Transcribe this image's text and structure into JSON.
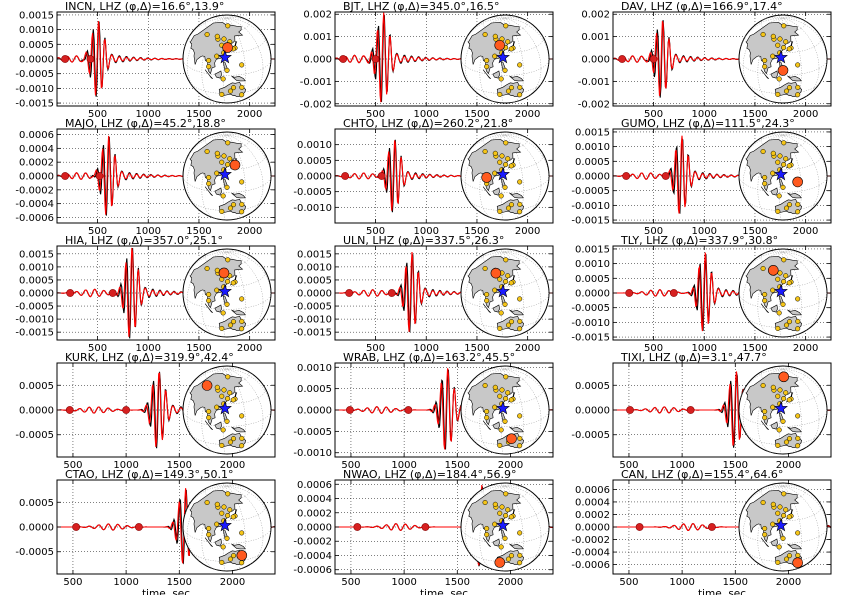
{
  "chart_data": {
    "type": "line",
    "xlabel": "time, sec",
    "series_colors": {
      "observed": "#000000",
      "synthetic": "#ff0000"
    },
    "globe_colors": {
      "land": "#c8c8c8",
      "ocean": "#ffffff",
      "station": "#f5c518",
      "active_station": "#ff5a1f",
      "event": "#1a1aff"
    },
    "panels": [
      {
        "station": "INCN",
        "channel": "LHZ",
        "phi": "16.6°",
        "delta": "13.9°",
        "xlim": [
          100,
          2250
        ],
        "xticks": [
          "500",
          "1000",
          "1500",
          "2000"
        ],
        "xtick_values": [
          500,
          1000,
          1500,
          2000
        ],
        "ylim": [
          -0.0016,
          0.0016
        ],
        "yticks": [
          "-0.0015",
          "-0.0010",
          "-0.0005",
          "0.0000",
          "0.0005",
          "0.0010",
          "0.0015"
        ],
        "ytick_values": [
          -0.0015,
          -0.001,
          -0.0005,
          0,
          0.0005,
          0.001,
          0.0015
        ],
        "arrival": 500,
        "peak": 0.00135,
        "markers": [
          180,
          430
        ],
        "active": {
          "lat": 37,
          "lon": 126
        }
      },
      {
        "station": "BJT",
        "channel": "LHZ",
        "phi": "345.0°",
        "delta": "16.5°",
        "xlim": [
          100,
          2250
        ],
        "xticks": [
          "500",
          "1000",
          "1500",
          "2000"
        ],
        "xtick_values": [
          500,
          1000,
          1500,
          2000
        ],
        "ylim": [
          -0.0021,
          0.0021
        ],
        "yticks": [
          "-0.002",
          "-0.001",
          "0.000",
          "0.001",
          "0.002"
        ],
        "ytick_values": [
          -0.002,
          -0.001,
          0,
          0.001,
          0.002
        ],
        "arrival": 570,
        "peak": 0.0021,
        "markers": [
          180,
          500
        ],
        "active": {
          "lat": 40,
          "lon": 116
        }
      },
      {
        "station": "DAV",
        "channel": "LHZ",
        "phi": "166.9°",
        "delta": "17.4°",
        "xlim": [
          100,
          2250
        ],
        "xticks": [
          "500",
          "1000",
          "1500",
          "2000"
        ],
        "xtick_values": [
          500,
          1000,
          1500,
          2000
        ],
        "ylim": [
          -0.0021,
          0.0021
        ],
        "yticks": [
          "-0.002",
          "-0.001",
          "0.000",
          "0.001",
          "0.002"
        ],
        "ytick_values": [
          -0.002,
          -0.001,
          0,
          0.001,
          0.002
        ],
        "arrival": 580,
        "peak": 0.0018,
        "markers": [
          190,
          500
        ],
        "active": {
          "lat": 7,
          "lon": 125
        }
      },
      {
        "station": "MAJO",
        "channel": "LHZ",
        "phi": "45.2°",
        "delta": "18.8°",
        "xlim": [
          100,
          2250
        ],
        "xticks": [
          "500",
          "1000",
          "1500",
          "2000"
        ],
        "xtick_values": [
          500,
          1000,
          1500,
          2000
        ],
        "ylim": [
          -0.00068,
          0.00068
        ],
        "yticks": [
          "-0.0006",
          "-0.0004",
          "-0.0002",
          "0.0000",
          "0.0002",
          "0.0004",
          "0.0006"
        ],
        "ytick_values": [
          -0.0006,
          -0.0004,
          -0.0002,
          0,
          0.0002,
          0.0004,
          0.0006
        ],
        "arrival": 600,
        "peak": 0.0006,
        "markers": [
          180,
          520
        ],
        "active": {
          "lat": 36,
          "lon": 138
        }
      },
      {
        "station": "CHTO",
        "channel": "LHZ",
        "phi": "260.2°",
        "delta": "21.8°",
        "xlim": [
          100,
          2250
        ],
        "xticks": [
          "500",
          "1000",
          "1500",
          "2000"
        ],
        "xtick_values": [
          500,
          1000,
          1500,
          2000
        ],
        "ylim": [
          -0.0015,
          0.0015
        ],
        "yticks": [
          "-0.0010",
          "-0.0005",
          "0.0000",
          "0.0005",
          "0.0010"
        ],
        "ytick_values": [
          -0.001,
          -0.0005,
          0,
          0.0005,
          0.001
        ],
        "arrival": 680,
        "peak": 0.0012,
        "markers": [
          200,
          560
        ],
        "active": {
          "lat": 18,
          "lon": 99
        }
      },
      {
        "station": "GUMO",
        "channel": "LHZ",
        "phi": "111.5°",
        "delta": "24.3°",
        "xlim": [
          100,
          2250
        ],
        "xticks": [
          "500",
          "1000",
          "1500",
          "2000"
        ],
        "xtick_values": [
          500,
          1000,
          1500,
          2000
        ],
        "ylim": [
          -0.0016,
          0.0016
        ],
        "yticks": [
          "-0.0015",
          "-0.0010",
          "-0.0005",
          "0.0000",
          "0.0005",
          "0.0010",
          "0.0015"
        ],
        "ytick_values": [
          -0.0015,
          -0.001,
          -0.0005,
          0,
          0.0005,
          0.001,
          0.0015
        ],
        "arrival": 770,
        "peak": 0.0014,
        "markers": [
          230,
          620
        ],
        "active": {
          "lat": 13,
          "lon": 145
        }
      },
      {
        "station": "HIA",
        "channel": "LHZ",
        "phi": "357.0°",
        "delta": "25.1°",
        "xlim": [
          100,
          2250
        ],
        "xticks": [
          "500",
          "1000",
          "1500",
          "2000"
        ],
        "xtick_values": [
          500,
          1000,
          1500,
          2000
        ],
        "ylim": [
          -0.0018,
          0.0018
        ],
        "yticks": [
          "-0.0015",
          "-0.0010",
          "-0.0005",
          "0.0000",
          "0.0005",
          "0.0010",
          "0.0015"
        ],
        "ytick_values": [
          -0.0015,
          -0.001,
          -0.0005,
          0,
          0.0005,
          0.001,
          0.0015
        ],
        "arrival": 830,
        "peak": 0.0018,
        "markers": [
          230,
          650
        ],
        "active": {
          "lat": 49,
          "lon": 119
        }
      },
      {
        "station": "ULN",
        "channel": "LHZ",
        "phi": "337.5°",
        "delta": "26.3°",
        "xlim": [
          100,
          2250
        ],
        "xticks": [
          "500",
          "1000",
          "1500",
          "2000"
        ],
        "xtick_values": [
          500,
          1000,
          1500,
          2000
        ],
        "ylim": [
          -0.0018,
          0.0018
        ],
        "yticks": [
          "-0.0015",
          "-0.0010",
          "-0.0005",
          "0.0000",
          "0.0005",
          "0.0010",
          "0.0015"
        ],
        "ytick_values": [
          -0.0015,
          -0.001,
          -0.0005,
          0,
          0.0005,
          0.001,
          0.0015
        ],
        "arrival": 850,
        "peak": 0.0016,
        "markers": [
          240,
          660
        ],
        "active": {
          "lat": 48,
          "lon": 107
        }
      },
      {
        "station": "TLY",
        "channel": "LHZ",
        "phi": "337.9°",
        "delta": "30.8°",
        "xlim": [
          100,
          2250
        ],
        "xticks": [
          "500",
          "1000",
          "1500",
          "2000"
        ],
        "xtick_values": [
          500,
          1000,
          1500,
          2000
        ],
        "ylim": [
          -0.0016,
          0.0016
        ],
        "yticks": [
          "-0.0015",
          "-0.0010",
          "-0.0005",
          "0.0000",
          "0.0005",
          "0.0010",
          "0.0015"
        ],
        "ytick_values": [
          -0.0015,
          -0.001,
          -0.0005,
          0,
          0.0005,
          0.001,
          0.0015
        ],
        "arrival": 1000,
        "peak": 0.0014,
        "markers": [
          260,
          700
        ],
        "active": {
          "lat": 52,
          "lon": 104
        }
      },
      {
        "station": "KURK",
        "channel": "LHZ",
        "phi": "319.9°",
        "delta": "42.4°",
        "xlim": [
          350,
          2400
        ],
        "xticks": [
          "500",
          "1000",
          "1500",
          "2000"
        ],
        "xtick_values": [
          500,
          1000,
          1500,
          2000
        ],
        "ylim": [
          -0.00095,
          0.00095
        ],
        "yticks": [
          "-0.0005",
          "0.0000",
          "0.0005"
        ],
        "ytick_values": [
          -0.0005,
          0,
          0.0005
        ],
        "arrival": 1300,
        "peak": 0.0008,
        "markers": [
          470,
          1000
        ],
        "active": {
          "lat": 51,
          "lon": 79
        }
      },
      {
        "station": "WRAB",
        "channel": "LHZ",
        "phi": "163.2°",
        "delta": "45.5°",
        "xlim": [
          350,
          2400
        ],
        "xticks": [
          "500",
          "1000",
          "1500",
          "2000"
        ],
        "xtick_values": [
          500,
          1000,
          1500,
          2000
        ],
        "ylim": [
          -0.0011,
          0.0011
        ],
        "yticks": [
          "-0.0010",
          "-0.0005",
          "0.0000",
          "0.0005",
          "0.0010"
        ],
        "ytick_values": [
          -0.001,
          -0.0005,
          0,
          0.0005,
          0.001
        ],
        "arrival": 1400,
        "peak": 0.001,
        "markers": [
          490,
          1040
        ],
        "active": {
          "lat": -19,
          "lon": 134
        }
      },
      {
        "station": "TIXI",
        "channel": "LHZ",
        "phi": "3.1°",
        "delta": "47.7°",
        "xlim": [
          350,
          2400
        ],
        "xticks": [
          "500",
          "1000",
          "1500",
          "2000"
        ],
        "xtick_values": [
          500,
          1000,
          1500,
          2000
        ],
        "ylim": [
          -0.00095,
          0.00095
        ],
        "yticks": [
          "-0.0005",
          "0.0000",
          "0.0005"
        ],
        "ytick_values": [
          -0.0005,
          0,
          0.0005
        ],
        "arrival": 1500,
        "peak": 0.0008,
        "markers": [
          510,
          1080
        ],
        "active": {
          "lat": 71,
          "lon": 128
        }
      },
      {
        "station": "CTAO",
        "channel": "LHZ",
        "phi": "149.3°",
        "delta": "50.1°",
        "xlim": [
          350,
          2400
        ],
        "xticks": [
          "500",
          "1000",
          "1500",
          "2000"
        ],
        "xtick_values": [
          500,
          1000,
          1500,
          2000
        ],
        "ylim": [
          -0.00095,
          0.00095
        ],
        "yticks": [
          "-0.0005",
          "0.0000",
          "0.0005"
        ],
        "ytick_values": [
          -0.0005,
          0,
          0.0005
        ],
        "arrival": 1550,
        "peak": 0.0008,
        "markers": [
          530,
          1120
        ],
        "active": {
          "lat": -20,
          "lon": 146
        }
      },
      {
        "station": "NWAO",
        "channel": "LHZ",
        "phi": "184.4°",
        "delta": "56.9°",
        "xlim": [
          350,
          2400
        ],
        "xticks": [
          "500",
          "1000",
          "1500",
          "2000"
        ],
        "xtick_values": [
          500,
          1000,
          1500,
          2000
        ],
        "ylim": [
          -0.00066,
          0.00066
        ],
        "yticks": [
          "-0.0006",
          "-0.0004",
          "-0.0002",
          "0.0000",
          "0.0002",
          "0.0004",
          "0.0006"
        ],
        "ytick_values": [
          -0.0006,
          -0.0004,
          -0.0002,
          0,
          0.0002,
          0.0004,
          0.0006
        ],
        "arrival": 1720,
        "peak": 0.0006,
        "markers": [
          560,
          1200
        ],
        "active": {
          "lat": -32,
          "lon": 117
        }
      },
      {
        "station": "CAN",
        "channel": "LHZ",
        "phi": "155.4°",
        "delta": "64.6°",
        "xlim": [
          350,
          2400
        ],
        "xticks": [
          "500",
          "1000",
          "1500",
          "2000"
        ],
        "xtick_values": [
          500,
          1000,
          1500,
          2000
        ],
        "ylim": [
          -0.00075,
          0.00075
        ],
        "yticks": [
          "-0.0006",
          "-0.0004",
          "-0.0002",
          "0.0000",
          "0.0002",
          "0.0004",
          "0.0006"
        ],
        "ytick_values": [
          -0.0006,
          -0.0004,
          -0.0002,
          0,
          0.0002,
          0.0004,
          0.0006
        ],
        "arrival": 1950,
        "peak": 0.0007,
        "markers": [
          600,
          1280
        ],
        "active": {
          "lat": -35,
          "lon": 149
        }
      }
    ],
    "stations_all": [
      [
        37,
        126
      ],
      [
        40,
        116
      ],
      [
        7,
        125
      ],
      [
        36,
        138
      ],
      [
        18,
        99
      ],
      [
        13,
        145
      ],
      [
        49,
        119
      ],
      [
        48,
        107
      ],
      [
        52,
        104
      ],
      [
        51,
        79
      ],
      [
        -19,
        134
      ],
      [
        71,
        128
      ],
      [
        -20,
        146
      ],
      [
        -32,
        117
      ],
      [
        -35,
        149
      ],
      [
        30,
        120
      ],
      [
        25,
        110
      ],
      [
        35,
        135
      ],
      [
        -5,
        120
      ],
      [
        10,
        100
      ],
      [
        45,
        130
      ],
      [
        -25,
        130
      ]
    ],
    "event": {
      "lat": 24,
      "lon": 122
    }
  }
}
